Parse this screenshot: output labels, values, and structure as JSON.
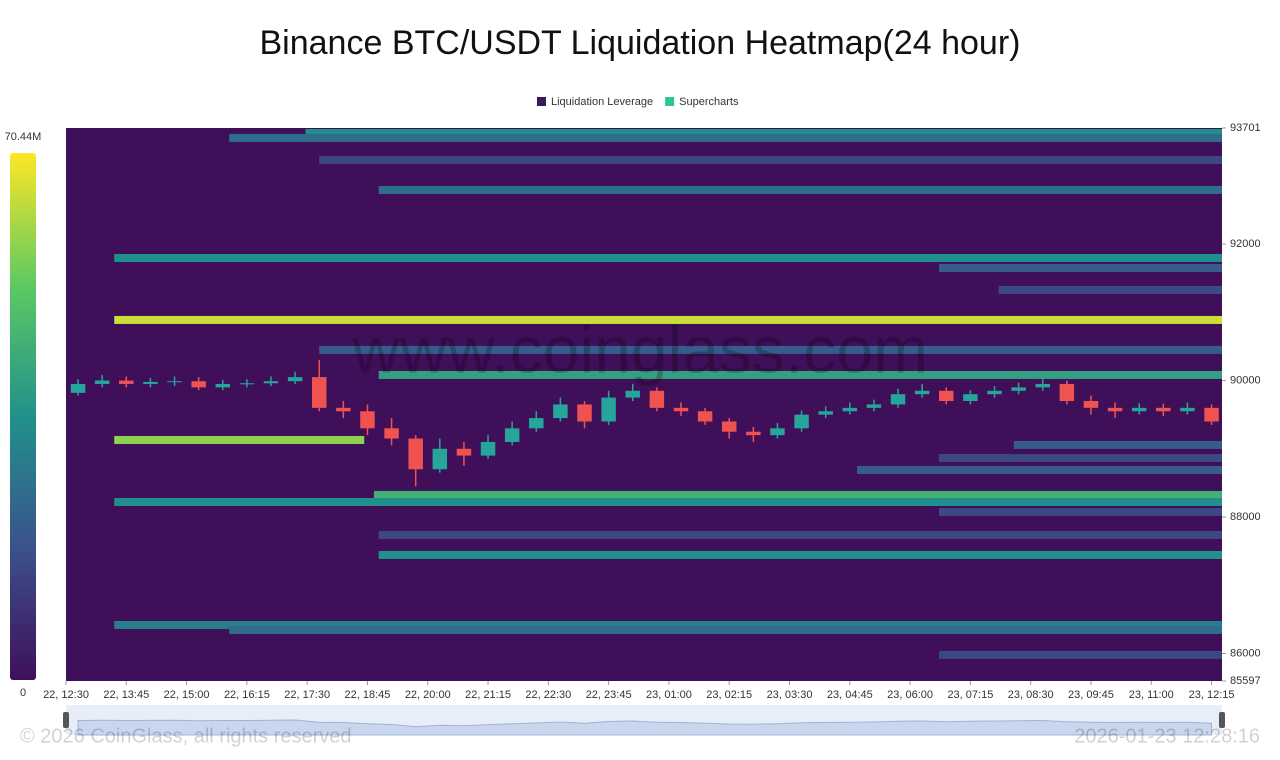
{
  "chart_data": {
    "type": "heatmap-candlestick",
    "title": "Binance BTC/USDT Liquidation Heatmap(24 hour)",
    "series": [
      {
        "name": "Liquidation Leverage",
        "color": "#3b1a5a"
      },
      {
        "name": "Supercharts",
        "color": "#2ec49a"
      }
    ],
    "colorbar": {
      "max": {
        "value": 70.44,
        "label": "70.44M"
      },
      "min": 0,
      "colors": [
        "#3f0f5a",
        "#3b528b",
        "#21918c",
        "#5ec962",
        "#fde725"
      ]
    },
    "ylim": [
      85597,
      93701
    ],
    "yticks": [
      85597,
      86000,
      88000,
      90000,
      92000,
      93701
    ],
    "xlim": [
      750,
      2188
    ],
    "xticks": [
      {
        "value": 750,
        "label": "22, 12:30"
      },
      {
        "value": 825,
        "label": "22, 13:45"
      },
      {
        "value": 900,
        "label": "22, 15:00"
      },
      {
        "value": 975,
        "label": "22, 16:15"
      },
      {
        "value": 1050,
        "label": "22, 17:30"
      },
      {
        "value": 1125,
        "label": "22, 18:45"
      },
      {
        "value": 1200,
        "label": "22, 20:00"
      },
      {
        "value": 1275,
        "label": "22, 21:15"
      },
      {
        "value": 1350,
        "label": "22, 22:30"
      },
      {
        "value": 1425,
        "label": "22, 23:45"
      },
      {
        "value": 1500,
        "label": "23, 01:00"
      },
      {
        "value": 1575,
        "label": "23, 02:15"
      },
      {
        "value": 1650,
        "label": "23, 03:30"
      },
      {
        "value": 1725,
        "label": "23, 04:45"
      },
      {
        "value": 1800,
        "label": "23, 06:00"
      },
      {
        "value": 1875,
        "label": "23, 07:15"
      },
      {
        "value": 1950,
        "label": "23, 08:30"
      },
      {
        "value": 2025,
        "label": "23, 09:45"
      },
      {
        "value": 2100,
        "label": "23, 11:00"
      },
      {
        "value": 2175,
        "label": "23, 12:15"
      }
    ],
    "bands": [
      {
        "price": 93628,
        "start": 1048,
        "value": 35
      },
      {
        "price": 93555,
        "start": 953,
        "value": 25
      },
      {
        "price": 93232,
        "start": 1065,
        "value": 15
      },
      {
        "price": 92793,
        "start": 1139,
        "value": 25
      },
      {
        "price": 91796,
        "start": 810,
        "value": 35
      },
      {
        "price": 91650,
        "start": 1836,
        "value": 20
      },
      {
        "price": 91327,
        "start": 1910,
        "value": 15
      },
      {
        "price": 90888,
        "start": 810,
        "value": 65
      },
      {
        "price": 90449,
        "start": 1065,
        "value": 20
      },
      {
        "price": 90082,
        "start": 1139,
        "value": 40
      },
      {
        "price": 89129,
        "start": 810,
        "end": 1121,
        "value": 58
      },
      {
        "price": 89056,
        "start": 1929,
        "value": 20
      },
      {
        "price": 88865,
        "start": 1836,
        "value": 15
      },
      {
        "price": 88689,
        "start": 1734,
        "value": 20
      },
      {
        "price": 88323,
        "start": 1133,
        "value": 45
      },
      {
        "price": 88220,
        "start": 810,
        "value": 35
      },
      {
        "price": 88074,
        "start": 1836,
        "value": 15
      },
      {
        "price": 87737,
        "start": 1139,
        "value": 15
      },
      {
        "price": 87444,
        "start": 1139,
        "value": 35
      },
      {
        "price": 86418,
        "start": 810,
        "value": 30
      },
      {
        "price": 86345,
        "start": 953,
        "value": 25
      },
      {
        "price": 85979,
        "start": 1836,
        "value": 15
      }
    ],
    "candles": {
      "x": [
        750,
        780,
        810,
        840,
        870,
        900,
        930,
        960,
        990,
        1020,
        1050,
        1080,
        1110,
        1140,
        1170,
        1200,
        1230,
        1260,
        1290,
        1320,
        1350,
        1380,
        1410,
        1440,
        1470,
        1500,
        1530,
        1560,
        1590,
        1620,
        1650,
        1680,
        1710,
        1740,
        1770,
        1800,
        1830,
        1860,
        1890,
        1920,
        1950,
        1980,
        2010,
        2040,
        2070,
        2100,
        2130,
        2160
      ],
      "open": [
        89820,
        89950,
        90000,
        89950,
        89980,
        89990,
        89900,
        89950,
        89960,
        89990,
        90050,
        89600,
        89550,
        89300,
        89150,
        88700,
        89000,
        88900,
        89100,
        89300,
        89450,
        89650,
        89400,
        89750,
        89850,
        89600,
        89550,
        89400,
        89250,
        89200,
        89300,
        89500,
        89550,
        89600,
        89650,
        89800,
        89850,
        89700,
        89800,
        89850,
        89900,
        89950,
        89700,
        89600,
        89550,
        89600,
        89550,
        89600
      ],
      "high": [
        90020,
        90080,
        90060,
        90040,
        90060,
        90050,
        90010,
        90020,
        90060,
        90130,
        90300,
        89700,
        89650,
        89450,
        89200,
        89150,
        89100,
        89200,
        89400,
        89550,
        89750,
        89700,
        89850,
        89950,
        89900,
        89680,
        89600,
        89450,
        89320,
        89380,
        89560,
        89620,
        89680,
        89720,
        89880,
        89950,
        89900,
        89860,
        89920,
        89970,
        90050,
        90000,
        89780,
        89680,
        89670,
        89660,
        89680,
        89650
      ],
      "low": [
        89780,
        89900,
        89900,
        89900,
        89920,
        89860,
        89860,
        89900,
        89920,
        89950,
        89550,
        89450,
        89200,
        89050,
        88450,
        88650,
        88750,
        88850,
        89050,
        89250,
        89400,
        89300,
        89350,
        89700,
        89550,
        89480,
        89350,
        89150,
        89100,
        89150,
        89250,
        89450,
        89500,
        89550,
        89600,
        89750,
        89650,
        89650,
        89750,
        89800,
        89850,
        89650,
        89500,
        89450,
        89500,
        89480,
        89500,
        89350
      ],
      "close": [
        89950,
        90000,
        89950,
        89980,
        89990,
        89900,
        89950,
        89960,
        89990,
        90050,
        89600,
        89550,
        89300,
        89150,
        88700,
        89000,
        88900,
        89100,
        89300,
        89450,
        89650,
        89400,
        89750,
        89850,
        89600,
        89550,
        89400,
        89250,
        89200,
        89300,
        89500,
        89550,
        89600,
        89650,
        89800,
        89850,
        89700,
        89800,
        89850,
        89900,
        89950,
        89700,
        89600,
        89550,
        89600,
        89550,
        89600,
        89400
      ],
      "up_color": "#26a69a",
      "down_color": "#ef5350"
    },
    "watermark": "www.coinglass.com",
    "footer_left": "© 2026 CoinGlass, all rights reserved",
    "footer_right": "2026-01-23 12:28:16"
  }
}
